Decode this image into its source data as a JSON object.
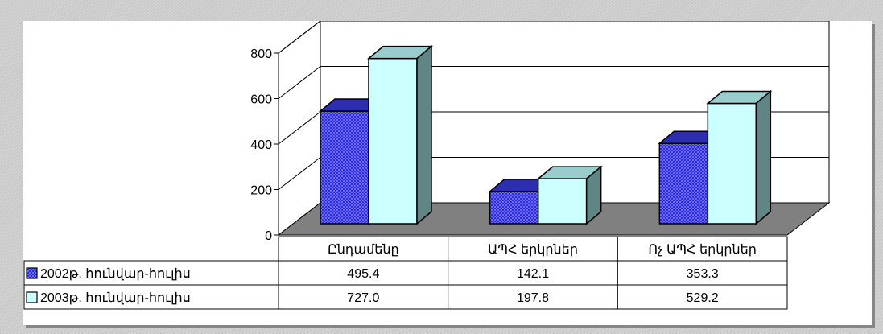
{
  "chart_data": {
    "type": "bar",
    "categories": [
      "Ընդամենը",
      "ԱՊՀ երկրներ",
      "Ոչ ԱՊՀ երկրներ"
    ],
    "series": [
      {
        "name": "2002թ. հունվար-հուլիս",
        "values": [
          495.4,
          142.1,
          353.3
        ],
        "value_labels": [
          "495.4",
          "142.1",
          "353.3"
        ],
        "color": "#3a3ad8"
      },
      {
        "name": "2003թ. հունվար-հուլիս",
        "values": [
          727.0,
          197.8,
          529.2
        ],
        "value_labels": [
          "727.0",
          "197.8",
          "529.2"
        ],
        "color": "#ccffff"
      }
    ],
    "y_ticks": [
      0,
      200,
      400,
      600,
      800
    ],
    "ylim": [
      0,
      800
    ],
    "grid": true,
    "legend": "data-table"
  },
  "colors": {
    "floor": "#808080",
    "side_2002": "#1a1a80",
    "side_2003": "#5f8585",
    "top_2002": "#2d2db0",
    "top_2003": "#99cccc"
  }
}
